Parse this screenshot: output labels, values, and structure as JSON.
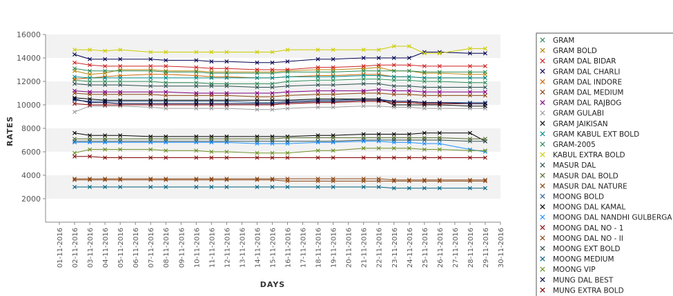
{
  "chart_data": {
    "type": "line",
    "xlabel": "DAYS",
    "ylabel": "RATES",
    "ylim": [
      0,
      16000
    ],
    "y_ticks": [
      2000,
      4000,
      6000,
      8000,
      10000,
      12000,
      14000,
      16000
    ],
    "x_ticks": [
      "01-11-2016",
      "02-11-2016",
      "03-11-2016",
      "04-11-2016",
      "05-11-2016",
      "06-11-2016",
      "07-11-2016",
      "08-11-2016",
      "09-11-2016",
      "10-11-2016",
      "11-11-2016",
      "12-11-2016",
      "13-11-2016",
      "14-11-2016",
      "15-11-2016",
      "16-11-2016",
      "17-11-2016",
      "18-11-2016",
      "19-11-2016",
      "20-11-2016",
      "21-11-2016",
      "22-11-2016",
      "23-11-2016",
      "24-11-2016",
      "25-11-2016",
      "26-11-2016",
      "27-11-2016",
      "28-11-2016",
      "29-11-2016",
      "30-11-2016"
    ],
    "x_days": [
      2,
      3,
      4,
      5,
      7,
      8,
      10,
      11,
      12,
      14,
      15,
      16,
      18,
      19,
      21,
      22,
      23,
      24,
      25,
      26,
      28,
      29
    ],
    "grid": "alternating horizontal bands",
    "legend_position": "right",
    "series": [
      {
        "name": "GRAM",
        "color": "#2e8b57",
        "values": [
          12100,
          12000,
          12000,
          12000,
          12000,
          11900,
          11900,
          11800,
          11800,
          11800,
          11800,
          12000,
          12100,
          12100,
          12200,
          12200,
          12100,
          12100,
          12000,
          12000,
          11900,
          11900
        ]
      },
      {
        "name": "GRAM BOLD",
        "color": "#b8860b",
        "values": [
          12900,
          12600,
          12700,
          13000,
          13000,
          12900,
          12900,
          12800,
          12800,
          12800,
          12800,
          12900,
          13000,
          13000,
          13100,
          13200,
          12900,
          12900,
          12700,
          12700,
          12600,
          12600
        ]
      },
      {
        "name": "GRAM DAL BIDAR",
        "color": "#cc2222",
        "values": [
          13600,
          13400,
          13300,
          13300,
          13300,
          13300,
          13200,
          13100,
          13100,
          13000,
          13000,
          13000,
          13200,
          13200,
          13300,
          13400,
          13400,
          13400,
          13300,
          13300,
          13300,
          13300
        ]
      },
      {
        "name": "GRAM DAL CHARLI",
        "color": "#000050",
        "values": [
          14300,
          13900,
          13900,
          13900,
          13900,
          13800,
          13800,
          13700,
          13700,
          13600,
          13600,
          13700,
          13900,
          13900,
          14000,
          14000,
          14000,
          14000,
          14500,
          14500,
          14400,
          14400
        ]
      },
      {
        "name": "GRAM DAL INDORE",
        "color": "#cc6600",
        "values": [
          12200,
          12300,
          12400,
          12500,
          12600,
          12600,
          12500,
          12400,
          12400,
          12300,
          12300,
          12400,
          12500,
          12500,
          12600,
          12600,
          12400,
          12400,
          12300,
          12300,
          12300,
          12300
        ]
      },
      {
        "name": "GRAM DAL MEDIUM",
        "color": "#8b4513",
        "values": [
          11000,
          10900,
          10900,
          10900,
          10900,
          10800,
          10800,
          10800,
          10800,
          10700,
          10700,
          10800,
          10900,
          10900,
          11000,
          11000,
          10900,
          10900,
          10800,
          10800,
          10800,
          10800
        ]
      },
      {
        "name": "GRAM DAL RAJBOG",
        "color": "#800080",
        "values": [
          11200,
          11100,
          11100,
          11100,
          11100,
          11100,
          11000,
          11000,
          11000,
          11000,
          11000,
          11100,
          11200,
          11200,
          11200,
          11300,
          11200,
          11200,
          11100,
          11100,
          11100,
          11100
        ]
      },
      {
        "name": "GRAM GULABI",
        "color": "#999999",
        "values": [
          9400,
          9900,
          9900,
          9900,
          9800,
          9700,
          9700,
          9700,
          9700,
          9600,
          9600,
          9700,
          9800,
          9800,
          9900,
          9900,
          9800,
          9800,
          9700,
          9700,
          9700,
          9700
        ]
      },
      {
        "name": "GRAM JAIKISAN",
        "color": "#000000",
        "values": [
          7600,
          7400,
          7400,
          7400,
          7300,
          7300,
          7300,
          7300,
          7300,
          7300,
          7300,
          7300,
          7400,
          7400,
          7500,
          7500,
          7500,
          7500,
          7600,
          7600,
          7600,
          6900
        ]
      },
      {
        "name": "GRAM KABUL EXT BOLD",
        "color": "#008b8b",
        "values": [
          12400,
          12300,
          12300,
          12300,
          12300,
          12300,
          12300,
          12300,
          12300,
          12300,
          12300,
          12400,
          12400,
          12400,
          12500,
          12500,
          12400,
          12400,
          12300,
          12300,
          12300,
          12300
        ]
      },
      {
        "name": "GRAM-2005",
        "color": "#2e8b57",
        "values": [
          13100,
          12900,
          12900,
          12900,
          12900,
          12800,
          12800,
          12700,
          12700,
          12700,
          12700,
          12800,
          12800,
          12800,
          12900,
          12900,
          12900,
          12900,
          12800,
          12800,
          12800,
          12800
        ]
      },
      {
        "name": "KABUL EXTRA BOLD",
        "color": "#cccc00",
        "values": [
          14700,
          14700,
          14600,
          14700,
          14500,
          14500,
          14500,
          14500,
          14500,
          14500,
          14500,
          14700,
          14700,
          14700,
          14700,
          14700,
          15000,
          15000,
          14400,
          14400,
          14800,
          14800
        ]
      },
      {
        "name": "MASUR DAL",
        "color": "#2f4f4f",
        "values": [
          6900,
          6900,
          6900,
          6900,
          6900,
          6900,
          6900,
          6900,
          6900,
          6900,
          6900,
          6900,
          6900,
          6900,
          7000,
          7000,
          7000,
          7000,
          7000,
          7000,
          6900,
          6900
        ]
      },
      {
        "name": "MASUR DAL BOLD",
        "color": "#556b2f",
        "values": [
          7100,
          7100,
          7100,
          7100,
          7100,
          7100,
          7100,
          7100,
          7100,
          7100,
          7100,
          7200,
          7200,
          7200,
          7200,
          7200,
          7200,
          7200,
          7200,
          7200,
          7100,
          7100
        ]
      },
      {
        "name": "MASUR DAL NATURE",
        "color": "#8b4513",
        "values": [
          3600,
          3600,
          3600,
          3600,
          3600,
          3600,
          3600,
          3600,
          3600,
          3600,
          3600,
          3500,
          3500,
          3500,
          3500,
          3500,
          3500,
          3500,
          3500,
          3500,
          3500,
          3500
        ]
      },
      {
        "name": "MOONG BOLD",
        "color": "#336699",
        "values": [
          10400,
          10300,
          10300,
          10300,
          10300,
          10300,
          10300,
          10300,
          10300,
          10200,
          10200,
          10300,
          10400,
          10400,
          10500,
          10500,
          10300,
          10300,
          10200,
          10200,
          10200,
          10200
        ]
      },
      {
        "name": "MOONG DAL KAMAL",
        "color": "#000000",
        "values": [
          10600,
          10500,
          10400,
          10400,
          10400,
          10400,
          10400,
          10400,
          10400,
          10400,
          10400,
          10400,
          10500,
          10500,
          10500,
          10500,
          10000,
          10000,
          10000,
          10000,
          9900,
          9900
        ]
      },
      {
        "name": "MOONG DAL NANDHI GULBERGA",
        "color": "#1e90ff",
        "values": [
          6800,
          6800,
          6800,
          6800,
          6800,
          6800,
          6800,
          6800,
          6800,
          6700,
          6700,
          6700,
          6800,
          6800,
          6900,
          6900,
          6800,
          6800,
          6700,
          6700,
          6200,
          6000
        ]
      },
      {
        "name": "MOONG DAL NO - 1",
        "color": "#8b0000",
        "values": [
          10100,
          10000,
          10000,
          10000,
          10000,
          10000,
          10000,
          10000,
          10000,
          10000,
          10000,
          10100,
          10200,
          10200,
          10300,
          10300,
          10200,
          10200,
          10100,
          10100,
          10100,
          10100
        ]
      },
      {
        "name": "MOONG DAL NO - II",
        "color": "#8b4513",
        "values": [
          3700,
          3700,
          3700,
          3700,
          3700,
          3700,
          3700,
          3700,
          3700,
          3700,
          3700,
          3700,
          3700,
          3700,
          3700,
          3700,
          3600,
          3600,
          3600,
          3600,
          3600,
          3600
        ]
      },
      {
        "name": "MOONG EXT BOLD",
        "color": "#2f4f4f",
        "values": [
          11800,
          11700,
          11700,
          11700,
          11600,
          11600,
          11600,
          11600,
          11600,
          11500,
          11500,
          11600,
          11700,
          11700,
          11800,
          11800,
          11600,
          11600,
          11500,
          11500,
          11500,
          11500
        ]
      },
      {
        "name": "MOONG MEDIUM",
        "color": "#006080",
        "values": [
          3000,
          3000,
          3000,
          3000,
          3000,
          3000,
          3000,
          3000,
          3000,
          3000,
          3000,
          3000,
          3000,
          3000,
          3000,
          3000,
          2900,
          2900,
          2900,
          2900,
          2900,
          2900
        ]
      },
      {
        "name": "MOONG VIP",
        "color": "#6b8e23",
        "values": [
          5900,
          6200,
          6200,
          6200,
          6200,
          6100,
          6100,
          6000,
          6000,
          5900,
          5900,
          5900,
          6100,
          6100,
          6300,
          6300,
          6300,
          6300,
          6200,
          6200,
          6100,
          6100
        ]
      },
      {
        "name": "MUNG DAL BEST",
        "color": "#000040",
        "values": [
          10500,
          10200,
          10200,
          10100,
          10100,
          10100,
          10100,
          10100,
          10100,
          10100,
          10100,
          10200,
          10300,
          10300,
          10400,
          10400,
          10300,
          10300,
          10200,
          10200,
          10100,
          10100
        ]
      },
      {
        "name": "MUNG EXTRA BOLD",
        "color": "#800000",
        "values": [
          5600,
          5600,
          5500,
          5500,
          5500,
          5500,
          5500,
          5500,
          5500,
          5500,
          5500,
          5500,
          5500,
          5500,
          5500,
          5500,
          5500,
          5500,
          5500,
          5500,
          5500,
          5500
        ]
      }
    ]
  }
}
